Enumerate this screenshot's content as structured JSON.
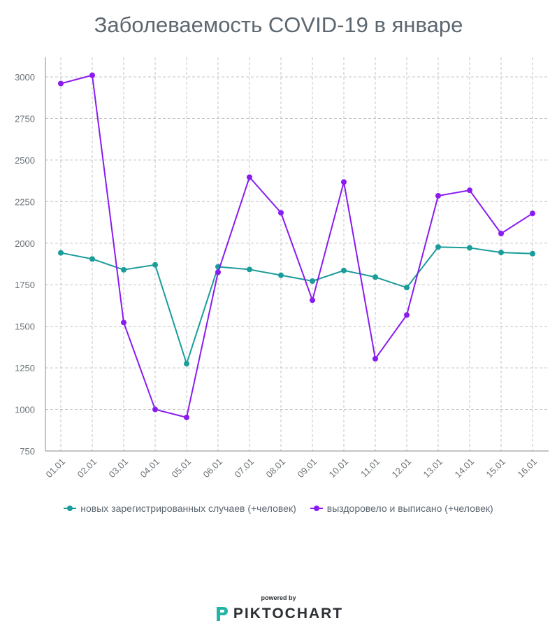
{
  "chart_data": {
    "type": "line",
    "title": "Заболеваемость COVID-19 в январе",
    "xlabel": "",
    "ylabel": "",
    "categories": [
      "01.01",
      "02.01",
      "03.01",
      "04.01",
      "05.01",
      "06.01",
      "07.01",
      "08.01",
      "09.01",
      "10.01",
      "11.01",
      "12.01",
      "13.01",
      "14.01",
      "15.01",
      "16.01"
    ],
    "ylim": [
      750,
      3000
    ],
    "yticks": [
      750,
      1000,
      1250,
      1500,
      1750,
      2000,
      2250,
      2500,
      2750,
      3000
    ],
    "grid": true,
    "legend_position": "bottom",
    "series": [
      {
        "name": "новых зарегистрированных случаев (+человек)",
        "color": "#1a9c9a",
        "values": [
          1942,
          1905,
          1840,
          1870,
          1275,
          1858,
          1842,
          1807,
          1772,
          1836,
          1796,
          1733,
          1977,
          1972,
          1944,
          1937
        ]
      },
      {
        "name": "выздоровело и выписано (+человек)",
        "color": "#8a1cf0",
        "values": [
          2960,
          3010,
          1523,
          1000,
          952,
          1825,
          2397,
          2183,
          1657,
          2368,
          1305,
          1568,
          2285,
          2318,
          2058,
          2179
        ]
      }
    ]
  },
  "branding": {
    "powered_by": "powered by",
    "name": "PIKTOCHART",
    "logo_color": "#1fb6a6"
  }
}
